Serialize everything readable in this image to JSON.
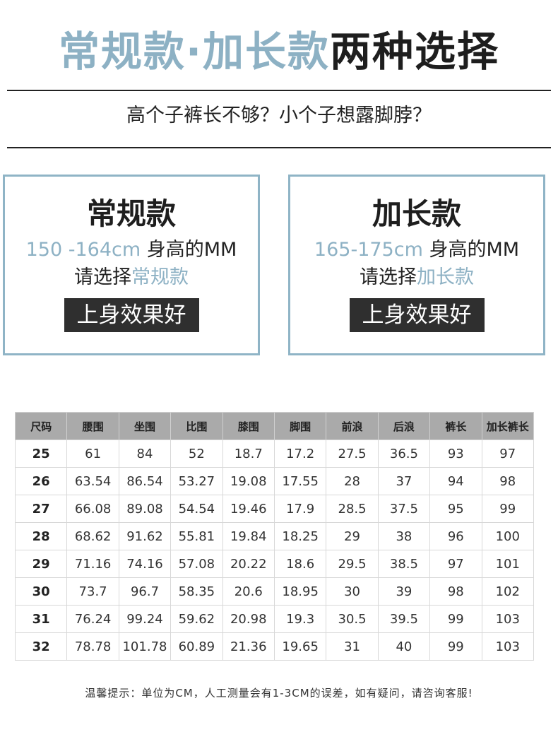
{
  "header": {
    "title_part1": "常规款·加长款",
    "title_part2": "两种选择",
    "subtitle": "高个子裤长不够？小个子想露脚脖？"
  },
  "options": [
    {
      "name": "常规款",
      "height_range": "150 -164cm",
      "height_suffix": " 身高的MM",
      "choose_prefix": "请选择",
      "choose_style": "常规款",
      "tag": "上身效果好"
    },
    {
      "name": "加长款",
      "height_range": "165-175cm",
      "height_suffix": " 身高的MM",
      "choose_prefix": "请选择",
      "choose_style": "加长款",
      "tag": "上身效果好"
    }
  ],
  "size_table": {
    "headers": [
      "尺码",
      "腰围",
      "坐围",
      "比围",
      "膝围",
      "脚围",
      "前浪",
      "后浪",
      "裤长",
      "加长裤长"
    ],
    "rows": [
      [
        "25",
        "61",
        "84",
        "52",
        "18.7",
        "17.2",
        "27.5",
        "36.5",
        "93",
        "97"
      ],
      [
        "26",
        "63.54",
        "86.54",
        "53.27",
        "19.08",
        "17.55",
        "28",
        "37",
        "94",
        "98"
      ],
      [
        "27",
        "66.08",
        "89.08",
        "54.54",
        "19.46",
        "17.9",
        "28.5",
        "37.5",
        "95",
        "99"
      ],
      [
        "28",
        "68.62",
        "91.62",
        "55.81",
        "19.84",
        "18.25",
        "29",
        "38",
        "96",
        "100"
      ],
      [
        "29",
        "71.16",
        "74.16",
        "57.08",
        "20.22",
        "18.6",
        "29.5",
        "38.5",
        "97",
        "101"
      ],
      [
        "30",
        "73.7",
        "96.7",
        "58.35",
        "20.6",
        "18.95",
        "30",
        "39",
        "98",
        "102"
      ],
      [
        "31",
        "76.24",
        "99.24",
        "59.62",
        "20.98",
        "19.3",
        "30.5",
        "39.5",
        "99",
        "103"
      ],
      [
        "32",
        "78.78",
        "101.78",
        "60.89",
        "21.36",
        "19.65",
        "31",
        "40",
        "99",
        "103"
      ]
    ]
  },
  "footnote": "温馨提示：单位为CM，人工测量会有1-3CM的误差，如有疑问，请咨询客服!",
  "colors": {
    "accent": "#8db1c4",
    "dark": "#1e1e1e",
    "tag_bg": "#2f2f2f",
    "table_header_bg": "#aaaaaa"
  }
}
